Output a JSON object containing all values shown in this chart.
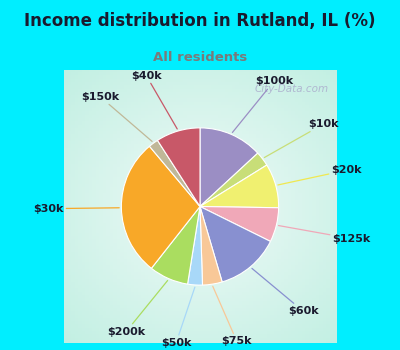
{
  "title": "Income distribution in Rutland, IL (%)",
  "subtitle": "All residents",
  "title_color": "#1a1a2e",
  "subtitle_color": "#7a7a7a",
  "bg_cyan": "#00eeff",
  "bg_chart_outer": "#b8eedd",
  "bg_chart_inner": "#f0faf8",
  "labels": [
    "$100k",
    "$10k",
    "$20k",
    "$125k",
    "$60k",
    "$75k",
    "$50k",
    "$200k",
    "$30k",
    "$150k",
    "$40k"
  ],
  "sizes": [
    13,
    3,
    9,
    7,
    13,
    4,
    3,
    8,
    28,
    2,
    9
  ],
  "colors": [
    "#9b8ec4",
    "#c8de78",
    "#f0f070",
    "#f0a8b8",
    "#8890d0",
    "#f8c898",
    "#a8d8f8",
    "#aadd60",
    "#f8a828",
    "#c0b898",
    "#c85868"
  ],
  "label_fontsize": 8,
  "watermark": "City-Data.com",
  "watermark_color": "#aaaacc",
  "line_colors": [
    "#9b8ec4",
    "#c8de78",
    "#f0e850",
    "#f0a8b8",
    "#8890d0",
    "#f8c898",
    "#a8d8f8",
    "#aadd60",
    "#f8a828",
    "#c0b898",
    "#c85868"
  ]
}
